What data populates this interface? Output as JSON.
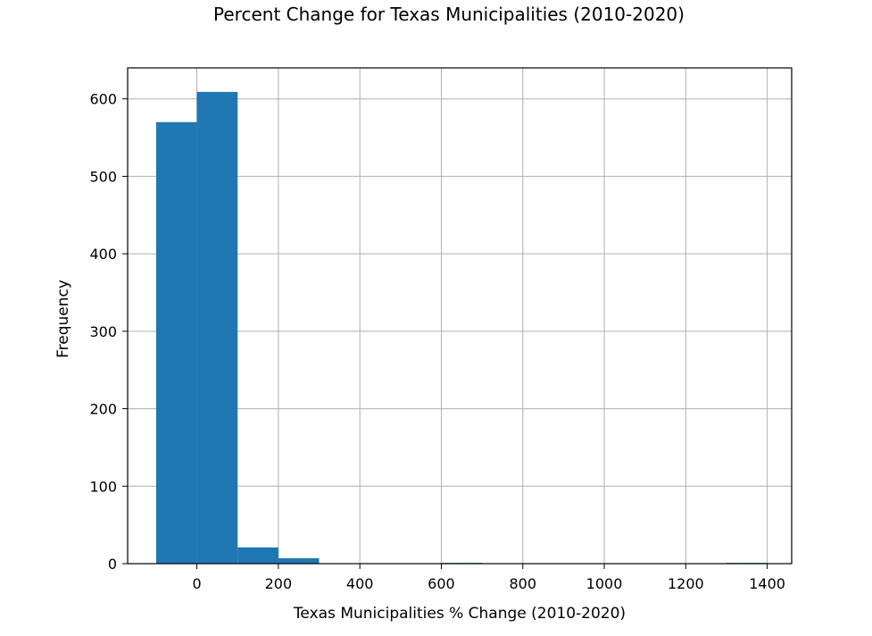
{
  "chart_data": {
    "type": "bar",
    "title": "Percent Change for Texas Municipalities (2010-2020)",
    "xlabel": "Texas Municipalities % Change (2010-2020)",
    "ylabel": "Frequency",
    "xlim": [
      -170,
      1460
    ],
    "ylim": [
      0,
      640
    ],
    "xticks": [
      0,
      200,
      400,
      600,
      800,
      1000,
      1200,
      1400
    ],
    "yticks": [
      0,
      100,
      200,
      300,
      400,
      500,
      600
    ],
    "bins": [
      {
        "start": -100,
        "end": 0,
        "count": 570
      },
      {
        "start": 0,
        "end": 100,
        "count": 609
      },
      {
        "start": 100,
        "end": 200,
        "count": 21
      },
      {
        "start": 200,
        "end": 300,
        "count": 7
      },
      {
        "start": 300,
        "end": 400,
        "count": 0
      },
      {
        "start": 400,
        "end": 500,
        "count": 0
      },
      {
        "start": 500,
        "end": 600,
        "count": 0
      },
      {
        "start": 600,
        "end": 700,
        "count": 1
      },
      {
        "start": 700,
        "end": 800,
        "count": 0
      },
      {
        "start": 800,
        "end": 900,
        "count": 0
      },
      {
        "start": 900,
        "end": 1000,
        "count": 0
      },
      {
        "start": 1000,
        "end": 1100,
        "count": 0
      },
      {
        "start": 1100,
        "end": 1200,
        "count": 0
      },
      {
        "start": 1200,
        "end": 1300,
        "count": 0
      },
      {
        "start": 1300,
        "end": 1400,
        "count": 1
      }
    ],
    "grid": true,
    "bar_color": "#1f77b4"
  }
}
